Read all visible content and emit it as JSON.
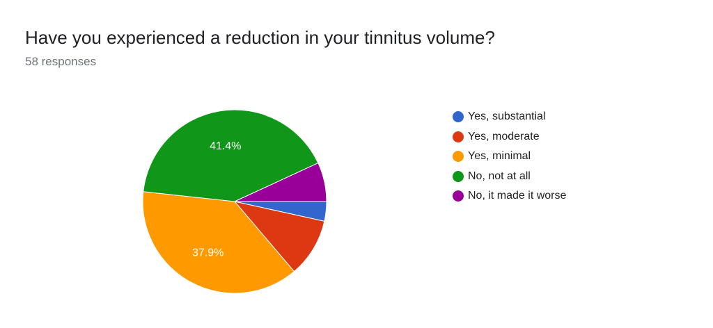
{
  "header": {
    "title": "Have you experienced a reduction in your tinnitus volume?",
    "subtitle": "58 responses"
  },
  "chart_data": {
    "type": "pie",
    "title": "Have you experienced a reduction in your tinnitus volume?",
    "total_responses": 58,
    "legend_position": "right",
    "slices": [
      {
        "label": "Yes, substantial",
        "count": 2,
        "percent": 3.4,
        "color": "#3366cc",
        "show_label": false,
        "label_text": ""
      },
      {
        "label": "Yes, moderate",
        "count": 6,
        "percent": 10.3,
        "color": "#dc3912",
        "show_label": false,
        "label_text": ""
      },
      {
        "label": "Yes, minimal",
        "count": 22,
        "percent": 37.9,
        "color": "#ff9900",
        "show_label": true,
        "label_text": "37.9%"
      },
      {
        "label": "No, not at all",
        "count": 24,
        "percent": 41.4,
        "color": "#109618",
        "show_label": true,
        "label_text": "41.4%"
      },
      {
        "label": "No, it made it worse",
        "count": 4,
        "percent": 6.9,
        "color": "#990099",
        "show_label": false,
        "label_text": ""
      }
    ]
  }
}
